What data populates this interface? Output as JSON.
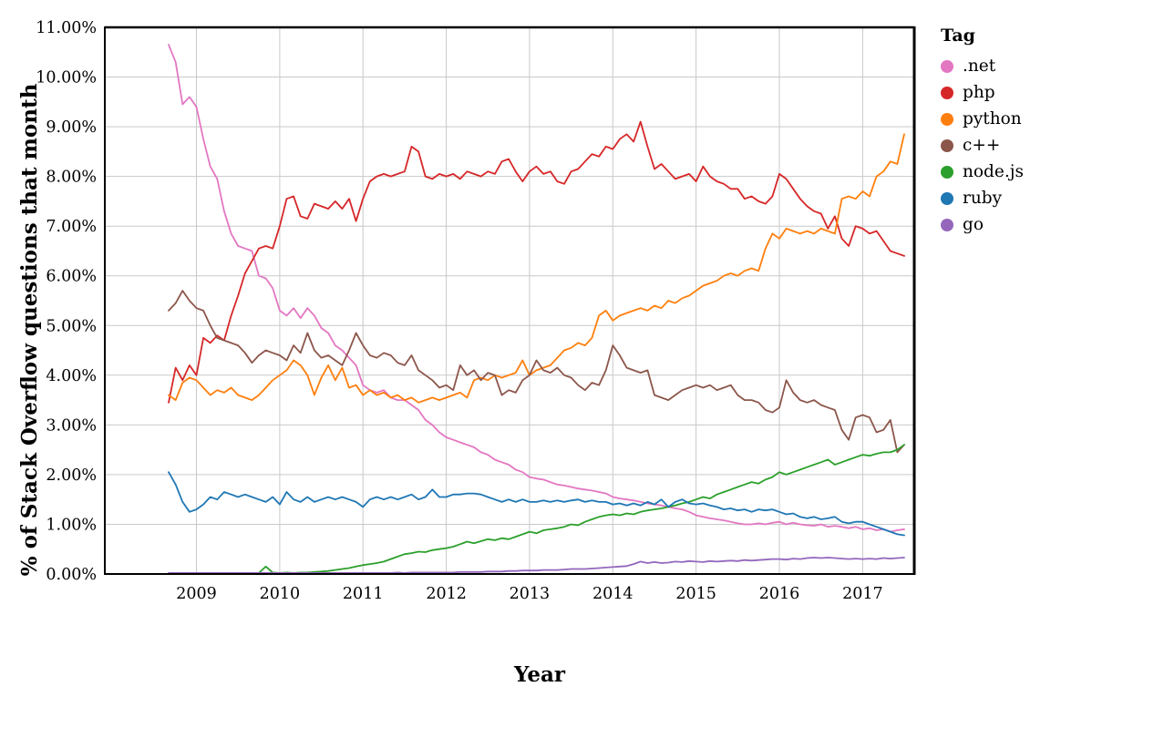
{
  "page": {
    "background": "#ffffff"
  },
  "chart": {
    "y_axis_label": "% of Stack Overflow questions that month",
    "x_axis_label": "Year",
    "legend_title": "Tag"
  },
  "chart_data": {
    "type": "line",
    "title": "",
    "xlabel": "Year",
    "ylabel": "% of Stack Overflow questions that month",
    "legend_title": "Tag",
    "legend_position": "right",
    "grid": true,
    "grid_color": "#c9c9c9",
    "frame_color": "#000000",
    "x_domain": [
      2007.9,
      2017.62
    ],
    "y_domain": [
      0,
      11
    ],
    "x_start": 2008.6667,
    "x_step": 0.0833333,
    "x_ticks": [
      {
        "value": 2009,
        "label": "2009"
      },
      {
        "value": 2010,
        "label": "2010"
      },
      {
        "value": 2011,
        "label": "2011"
      },
      {
        "value": 2012,
        "label": "2012"
      },
      {
        "value": 2013,
        "label": "2013"
      },
      {
        "value": 2014,
        "label": "2014"
      },
      {
        "value": 2015,
        "label": "2015"
      },
      {
        "value": 2016,
        "label": "2016"
      },
      {
        "value": 2017,
        "label": "2017"
      }
    ],
    "y_ticks": [
      {
        "value": 0,
        "label": "0.00%"
      },
      {
        "value": 1,
        "label": "1.00%"
      },
      {
        "value": 2,
        "label": "2.00%"
      },
      {
        "value": 3,
        "label": "3.00%"
      },
      {
        "value": 4,
        "label": "4.00%"
      },
      {
        "value": 5,
        "label": "5.00%"
      },
      {
        "value": 6,
        "label": "6.00%"
      },
      {
        "value": 7,
        "label": "7.00%"
      },
      {
        "value": 8,
        "label": "8.00%"
      },
      {
        "value": 9,
        "label": "9.00%"
      },
      {
        "value": 10,
        "label": "10.00%"
      },
      {
        "value": 11,
        "label": "11.00%"
      }
    ],
    "series": [
      {
        "name": ".net",
        "color": "#e377c2",
        "values": [
          10.65,
          10.3,
          9.45,
          9.6,
          9.4,
          8.75,
          8.2,
          7.95,
          7.3,
          6.85,
          6.6,
          6.55,
          6.5,
          6.0,
          5.95,
          5.75,
          5.3,
          5.2,
          5.35,
          5.15,
          5.35,
          5.2,
          4.95,
          4.85,
          4.6,
          4.5,
          4.35,
          4.2,
          3.8,
          3.7,
          3.65,
          3.7,
          3.55,
          3.5,
          3.5,
          3.4,
          3.3,
          3.1,
          3.0,
          2.85,
          2.75,
          2.7,
          2.65,
          2.6,
          2.55,
          2.45,
          2.4,
          2.3,
          2.25,
          2.2,
          2.1,
          2.05,
          1.95,
          1.92,
          1.9,
          1.85,
          1.8,
          1.78,
          1.75,
          1.72,
          1.7,
          1.68,
          1.65,
          1.62,
          1.55,
          1.52,
          1.5,
          1.48,
          1.45,
          1.42,
          1.4,
          1.38,
          1.35,
          1.32,
          1.3,
          1.25,
          1.18,
          1.15,
          1.12,
          1.1,
          1.08,
          1.05,
          1.02,
          1.0,
          1.0,
          1.02,
          1.0,
          1.03,
          1.05,
          1.0,
          1.03,
          1.0,
          0.98,
          0.97,
          1.0,
          0.95,
          0.97,
          0.95,
          0.92,
          0.95,
          0.9,
          0.92,
          0.88,
          0.9,
          0.85,
          0.88,
          0.9
        ]
      },
      {
        "name": "php",
        "color": "#d62728",
        "values": [
          3.45,
          4.15,
          3.9,
          4.2,
          4.0,
          4.75,
          4.65,
          4.8,
          4.7,
          5.2,
          5.6,
          6.05,
          6.3,
          6.55,
          6.6,
          6.55,
          7.0,
          7.55,
          7.6,
          7.2,
          7.15,
          7.45,
          7.4,
          7.35,
          7.5,
          7.35,
          7.55,
          7.1,
          7.55,
          7.9,
          8.0,
          8.05,
          8.0,
          8.05,
          8.1,
          8.6,
          8.5,
          8.0,
          7.95,
          8.05,
          8.0,
          8.05,
          7.95,
          8.1,
          8.05,
          8.0,
          8.1,
          8.05,
          8.3,
          8.35,
          8.1,
          7.9,
          8.1,
          8.2,
          8.05,
          8.1,
          7.9,
          7.85,
          8.1,
          8.15,
          8.3,
          8.45,
          8.4,
          8.6,
          8.55,
          8.75,
          8.85,
          8.7,
          9.1,
          8.6,
          8.15,
          8.25,
          8.1,
          7.95,
          8.0,
          8.05,
          7.9,
          8.2,
          8.0,
          7.9,
          7.85,
          7.75,
          7.75,
          7.55,
          7.6,
          7.5,
          7.45,
          7.6,
          8.05,
          7.95,
          7.75,
          7.55,
          7.4,
          7.3,
          7.25,
          6.95,
          7.2,
          6.75,
          6.6,
          7.0,
          6.95,
          6.85,
          6.9,
          6.7,
          6.5,
          6.45,
          6.4
        ]
      },
      {
        "name": "python",
        "color": "#ff7f0e",
        "values": [
          3.6,
          3.5,
          3.85,
          3.95,
          3.9,
          3.75,
          3.6,
          3.7,
          3.65,
          3.75,
          3.6,
          3.55,
          3.5,
          3.6,
          3.75,
          3.9,
          4.0,
          4.1,
          4.3,
          4.2,
          4.0,
          3.6,
          3.95,
          4.2,
          3.9,
          4.15,
          3.75,
          3.8,
          3.6,
          3.7,
          3.6,
          3.65,
          3.55,
          3.6,
          3.5,
          3.55,
          3.45,
          3.5,
          3.55,
          3.5,
          3.55,
          3.6,
          3.65,
          3.55,
          3.9,
          3.95,
          3.9,
          4.0,
          3.95,
          4.0,
          4.05,
          4.3,
          4.0,
          4.1,
          4.15,
          4.2,
          4.35,
          4.5,
          4.55,
          4.65,
          4.6,
          4.75,
          5.2,
          5.3,
          5.1,
          5.2,
          5.25,
          5.3,
          5.35,
          5.3,
          5.4,
          5.35,
          5.5,
          5.45,
          5.55,
          5.6,
          5.7,
          5.8,
          5.85,
          5.9,
          6.0,
          6.05,
          6.0,
          6.1,
          6.15,
          6.1,
          6.55,
          6.85,
          6.75,
          6.95,
          6.9,
          6.85,
          6.9,
          6.85,
          6.95,
          6.9,
          6.85,
          7.55,
          7.6,
          7.55,
          7.7,
          7.6,
          8.0,
          8.1,
          8.3,
          8.25,
          8.85
        ]
      },
      {
        "name": "c++",
        "color": "#8c564b",
        "values": [
          5.3,
          5.45,
          5.7,
          5.5,
          5.35,
          5.3,
          5.0,
          4.75,
          4.7,
          4.65,
          4.6,
          4.45,
          4.25,
          4.4,
          4.5,
          4.45,
          4.4,
          4.3,
          4.6,
          4.45,
          4.85,
          4.5,
          4.35,
          4.4,
          4.3,
          4.2,
          4.5,
          4.85,
          4.6,
          4.4,
          4.35,
          4.45,
          4.4,
          4.25,
          4.2,
          4.4,
          4.1,
          4.0,
          3.9,
          3.75,
          3.8,
          3.7,
          4.2,
          4.0,
          4.1,
          3.9,
          4.05,
          4.0,
          3.6,
          3.7,
          3.65,
          3.9,
          4.0,
          4.3,
          4.1,
          4.05,
          4.15,
          4.0,
          3.95,
          3.8,
          3.7,
          3.85,
          3.8,
          4.1,
          4.6,
          4.4,
          4.15,
          4.1,
          4.05,
          4.1,
          3.6,
          3.55,
          3.5,
          3.6,
          3.7,
          3.75,
          3.8,
          3.75,
          3.8,
          3.7,
          3.75,
          3.8,
          3.6,
          3.5,
          3.5,
          3.45,
          3.3,
          3.25,
          3.35,
          3.9,
          3.65,
          3.5,
          3.45,
          3.5,
          3.4,
          3.35,
          3.3,
          2.9,
          2.7,
          3.15,
          3.2,
          3.15,
          2.85,
          2.9,
          3.1,
          2.45,
          2.6
        ]
      },
      {
        "name": "node.js",
        "color": "#2ca02c",
        "values": [
          0,
          0,
          0,
          0,
          0,
          0,
          0,
          0,
          0,
          0,
          0,
          0,
          0,
          0.02,
          0.15,
          0.03,
          0.02,
          0.03,
          0.02,
          0.03,
          0.03,
          0.04,
          0.05,
          0.06,
          0.08,
          0.1,
          0.12,
          0.15,
          0.18,
          0.2,
          0.22,
          0.25,
          0.3,
          0.35,
          0.4,
          0.42,
          0.45,
          0.44,
          0.48,
          0.5,
          0.52,
          0.55,
          0.6,
          0.65,
          0.62,
          0.66,
          0.7,
          0.68,
          0.72,
          0.7,
          0.75,
          0.8,
          0.85,
          0.82,
          0.88,
          0.9,
          0.92,
          0.95,
          1.0,
          0.98,
          1.05,
          1.1,
          1.15,
          1.18,
          1.2,
          1.18,
          1.22,
          1.2,
          1.25,
          1.28,
          1.3,
          1.32,
          1.35,
          1.38,
          1.42,
          1.45,
          1.5,
          1.55,
          1.52,
          1.6,
          1.65,
          1.7,
          1.75,
          1.8,
          1.85,
          1.82,
          1.9,
          1.95,
          2.05,
          2.0,
          2.05,
          2.1,
          2.15,
          2.2,
          2.25,
          2.3,
          2.2,
          2.25,
          2.3,
          2.35,
          2.4,
          2.38,
          2.42,
          2.45,
          2.45,
          2.5,
          2.6
        ]
      },
      {
        "name": "ruby",
        "color": "#1f77b4",
        "values": [
          2.05,
          1.8,
          1.45,
          1.25,
          1.3,
          1.4,
          1.55,
          1.5,
          1.65,
          1.6,
          1.55,
          1.6,
          1.55,
          1.5,
          1.45,
          1.55,
          1.4,
          1.65,
          1.5,
          1.45,
          1.55,
          1.45,
          1.5,
          1.55,
          1.5,
          1.55,
          1.5,
          1.45,
          1.35,
          1.5,
          1.55,
          1.5,
          1.55,
          1.5,
          1.55,
          1.6,
          1.5,
          1.55,
          1.7,
          1.55,
          1.55,
          1.6,
          1.6,
          1.62,
          1.62,
          1.6,
          1.55,
          1.5,
          1.45,
          1.5,
          1.45,
          1.5,
          1.45,
          1.45,
          1.48,
          1.45,
          1.48,
          1.45,
          1.48,
          1.5,
          1.45,
          1.48,
          1.45,
          1.45,
          1.4,
          1.42,
          1.38,
          1.42,
          1.38,
          1.45,
          1.4,
          1.5,
          1.35,
          1.45,
          1.5,
          1.42,
          1.4,
          1.42,
          1.38,
          1.35,
          1.3,
          1.32,
          1.28,
          1.3,
          1.25,
          1.3,
          1.28,
          1.3,
          1.25,
          1.2,
          1.22,
          1.15,
          1.12,
          1.15,
          1.1,
          1.12,
          1.15,
          1.05,
          1.02,
          1.05,
          1.05,
          1.0,
          0.95,
          0.9,
          0.85,
          0.8,
          0.78
        ]
      },
      {
        "name": "go",
        "color": "#9467bd",
        "values": [
          0.02,
          0.02,
          0.02,
          0.02,
          0.02,
          0.02,
          0.02,
          0.02,
          0.02,
          0.02,
          0.02,
          0.02,
          0.02,
          0.02,
          0.02,
          0.02,
          0.02,
          0.02,
          0.02,
          0.02,
          0.02,
          0.02,
          0.02,
          0.02,
          0.02,
          0.02,
          0.02,
          0.02,
          0.02,
          0.02,
          0.02,
          0.02,
          0.02,
          0.03,
          0.02,
          0.03,
          0.03,
          0.03,
          0.03,
          0.03,
          0.03,
          0.03,
          0.04,
          0.04,
          0.04,
          0.04,
          0.05,
          0.05,
          0.05,
          0.06,
          0.06,
          0.07,
          0.07,
          0.07,
          0.08,
          0.08,
          0.08,
          0.09,
          0.1,
          0.1,
          0.1,
          0.11,
          0.12,
          0.13,
          0.14,
          0.15,
          0.16,
          0.2,
          0.25,
          0.22,
          0.24,
          0.22,
          0.23,
          0.25,
          0.24,
          0.26,
          0.25,
          0.24,
          0.26,
          0.25,
          0.26,
          0.27,
          0.26,
          0.28,
          0.27,
          0.28,
          0.29,
          0.3,
          0.3,
          0.29,
          0.31,
          0.3,
          0.32,
          0.33,
          0.32,
          0.33,
          0.32,
          0.31,
          0.3,
          0.31,
          0.3,
          0.31,
          0.3,
          0.32,
          0.31,
          0.32,
          0.33
        ]
      }
    ]
  }
}
